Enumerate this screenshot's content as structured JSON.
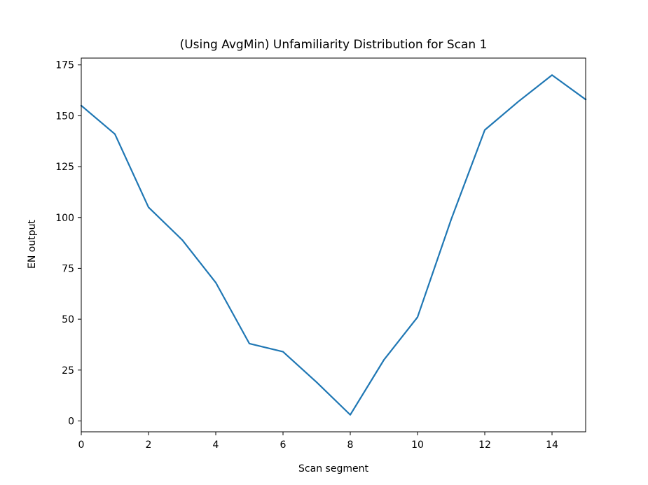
{
  "chart_data": {
    "type": "line",
    "title": "(Using AvgMin) Unfamiliarity Distribution for Scan 1",
    "xlabel": "Scan segment",
    "ylabel": "EN output",
    "xlim": [
      0,
      15
    ],
    "ylim": [
      -5.35,
      178.35
    ],
    "xticks": [
      0,
      2,
      4,
      6,
      8,
      10,
      12,
      14
    ],
    "yticks": [
      0,
      25,
      50,
      75,
      100,
      125,
      150,
      175
    ],
    "grid": false,
    "series": [
      {
        "color": "#1f77b4",
        "x": [
          0,
          1,
          2,
          3,
          4,
          5,
          6,
          7,
          8,
          9,
          10,
          11,
          12,
          13,
          14,
          15
        ],
        "y": [
          155,
          141,
          105,
          89,
          68,
          38,
          34,
          19,
          3,
          30,
          51,
          99,
          143,
          157,
          170,
          158
        ]
      }
    ]
  }
}
